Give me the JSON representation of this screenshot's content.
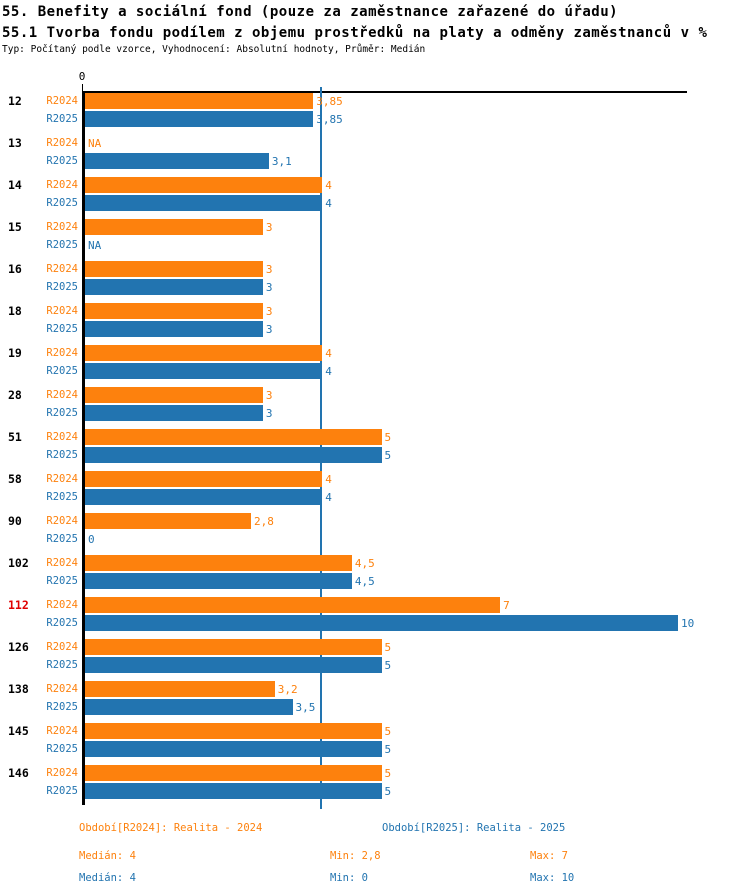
{
  "header": {
    "title1": "55. Benefity a sociální fond (pouze za zaměstnance zařazené do úřadu)",
    "title2": "55.1 Tvorba fondu podílem z objemu prostředků na platy a odměny zaměstnanců v %",
    "subtitle": "Typ: Počítaný podle vzorce, Vyhodnocení: Absolutní hodnoty, Průměr: Medián"
  },
  "chart_data": {
    "type": "bar",
    "orientation": "horizontal",
    "title": "55.1 Tvorba fondu podílem z objemu prostředků na platy a odměny zaměstnanců v %",
    "categories": [
      "12",
      "13",
      "14",
      "15",
      "16",
      "18",
      "19",
      "28",
      "51",
      "58",
      "90",
      "102",
      "112",
      "126",
      "138",
      "145",
      "146"
    ],
    "highlighted_category": "112",
    "series": [
      {
        "name": "R2024",
        "color": "#fd810d",
        "values": [
          3.85,
          null,
          4,
          3,
          3,
          3,
          4,
          3,
          5,
          4,
          2.8,
          4.5,
          7,
          5,
          3.2,
          5,
          5
        ],
        "labels": [
          "3,85",
          "NA",
          "4",
          "3",
          "3",
          "3",
          "4",
          "3",
          "5",
          "4",
          "2,8",
          "4,5",
          "7",
          "5",
          "3,2",
          "5",
          "5"
        ]
      },
      {
        "name": "R2025",
        "color": "#2274b0",
        "values": [
          3.85,
          3.1,
          4,
          null,
          3,
          3,
          4,
          3,
          5,
          4,
          0,
          4.5,
          10,
          5,
          3.5,
          5,
          5
        ],
        "labels": [
          "3,85",
          "3,1",
          "4",
          "NA",
          "3",
          "3",
          "4",
          "3",
          "5",
          "4",
          "0",
          "4,5",
          "10",
          "5",
          "3,5",
          "5",
          "5"
        ]
      }
    ],
    "xlim": [
      0,
      10.1
    ],
    "x_axis_ticks": [
      "0"
    ],
    "grid": false,
    "legend_position": "bottom",
    "reference_line": {
      "value": 4,
      "color": "#2274b0"
    }
  },
  "legend": {
    "r2024": "Období[R2024]: Realita - 2024",
    "r2025": "Období[R2025]: Realita - 2025"
  },
  "stats": {
    "r2024": {
      "median": "Medián: 4",
      "min": "Min: 2,8",
      "max": "Max: 7"
    },
    "r2025": {
      "median": "Medián: 4",
      "min": "Min: 0",
      "max": "Max: 10"
    }
  },
  "colors": {
    "r2024": "#fd810d",
    "r2025": "#2274b0",
    "highlight": "#e00000",
    "axis": "#000000"
  }
}
